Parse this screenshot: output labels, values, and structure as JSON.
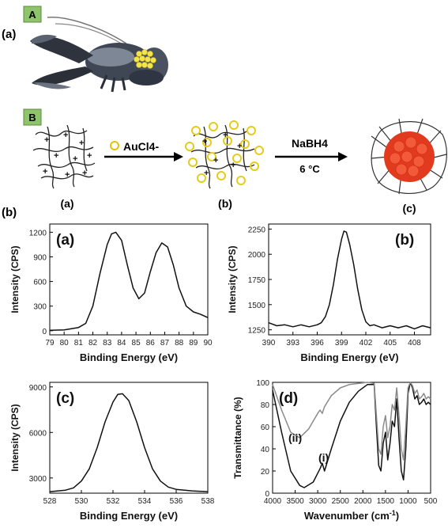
{
  "figure": {
    "part_a_label": "(a)",
    "part_b_label": "(b)",
    "box_a": "A",
    "box_b": "B",
    "scheme": {
      "reagent_1": "AuCl4-",
      "reagent_2": "NaBH4",
      "temperature": "6 °C",
      "stage_labels": [
        "(a)",
        "(b)",
        "(c)"
      ]
    }
  },
  "chart_data": [
    {
      "type": "line",
      "panel_label": "(a)",
      "xlabel": "Binding Energy (eV)",
      "ylabel": "Intensity (CPS)",
      "xlim": [
        79,
        90
      ],
      "ylim": [
        -50,
        1300
      ],
      "xticks": [
        79,
        80,
        81,
        82,
        83,
        84,
        85,
        86,
        87,
        88,
        89,
        90
      ],
      "yticks": [
        0,
        300,
        600,
        900,
        1200
      ],
      "series": [
        {
          "x": [
            79,
            80,
            81,
            81.5,
            82,
            82.5,
            83,
            83.3,
            83.6,
            84,
            84.4,
            84.8,
            85.2,
            85.6,
            86,
            86.4,
            86.8,
            87.2,
            87.6,
            88,
            88.5,
            89,
            89.5,
            90
          ],
          "y": [
            5,
            10,
            40,
            90,
            300,
            700,
            1050,
            1180,
            1200,
            1100,
            800,
            520,
            390,
            460,
            720,
            950,
            1070,
            1020,
            800,
            520,
            300,
            230,
            200,
            160
          ]
        }
      ]
    },
    {
      "type": "line",
      "panel_label": "(b)",
      "xlabel": "Binding Energy (eV)",
      "ylabel": "Intensity (CPS)",
      "xlim": [
        390,
        410
      ],
      "ylim": [
        1200,
        2300
      ],
      "xticks": [
        390,
        393,
        396,
        399,
        402,
        405,
        408
      ],
      "yticks": [
        1250,
        1500,
        1750,
        2000,
        2250
      ],
      "series": [
        {
          "x": [
            390,
            391,
            392,
            393,
            394,
            395,
            396,
            396.5,
            397,
            397.5,
            398,
            398.5,
            399,
            399.3,
            399.6,
            400,
            400.5,
            401,
            401.5,
            402,
            402.5,
            403,
            404,
            405,
            406,
            407,
            408,
            409,
            410
          ],
          "y": [
            1320,
            1290,
            1300,
            1280,
            1300,
            1280,
            1300,
            1320,
            1380,
            1500,
            1700,
            1950,
            2150,
            2230,
            2220,
            2100,
            1900,
            1650,
            1450,
            1330,
            1290,
            1300,
            1270,
            1290,
            1270,
            1290,
            1260,
            1290,
            1270
          ]
        }
      ]
    },
    {
      "type": "line",
      "panel_label": "(c)",
      "xlabel": "Binding Energy (eV)",
      "ylabel": "Intensity (CPS)",
      "xlim": [
        528,
        538
      ],
      "ylim": [
        2000,
        9300
      ],
      "xticks": [
        528,
        530,
        532,
        534,
        536,
        538
      ],
      "yticks": [
        3000,
        6000,
        9000
      ],
      "series": [
        {
          "x": [
            528,
            529,
            529.5,
            530,
            530.5,
            531,
            531.5,
            532,
            532.3,
            532.6,
            533,
            533.5,
            534,
            534.5,
            535,
            535.5,
            536,
            537,
            538
          ],
          "y": [
            2100,
            2200,
            2350,
            2800,
            3600,
            5000,
            6700,
            8000,
            8500,
            8550,
            8100,
            6700,
            5000,
            3600,
            2800,
            2400,
            2250,
            2150,
            2100
          ]
        }
      ]
    },
    {
      "type": "line",
      "panel_label": "(d)",
      "xlabel": "Wavenumber (cm-1)",
      "ylabel": "Transmittance (%)",
      "xlim": [
        4000,
        500
      ],
      "ylim": [
        0,
        100
      ],
      "xticks": [
        4000,
        3500,
        3000,
        2500,
        2000,
        1500,
        1000,
        500
      ],
      "yticks": [
        0,
        20,
        40,
        60,
        80,
        100
      ],
      "annotations": [
        "(i)",
        "(ii)"
      ],
      "series": [
        {
          "name": "(i)",
          "x": [
            4000,
            3800,
            3600,
            3400,
            3300,
            3100,
            2950,
            2900,
            2850,
            2700,
            2500,
            2300,
            2100,
            1900,
            1750,
            1700,
            1650,
            1600,
            1550,
            1500,
            1450,
            1400,
            1350,
            1300,
            1250,
            1200,
            1150,
            1100,
            1050,
            1000,
            950,
            900,
            850,
            800,
            750,
            700,
            650,
            600,
            550,
            500
          ],
          "y": [
            93,
            55,
            20,
            7,
            5,
            10,
            22,
            27,
            20,
            40,
            65,
            82,
            92,
            98,
            98,
            60,
            25,
            20,
            45,
            55,
            30,
            45,
            65,
            60,
            85,
            50,
            20,
            12,
            40,
            90,
            100,
            95,
            85,
            88,
            80,
            82,
            85,
            80,
            82,
            80
          ]
        },
        {
          "name": "(ii)",
          "x": [
            4000,
            3800,
            3600,
            3400,
            3200,
            3000,
            2950,
            2900,
            2850,
            2700,
            2500,
            2300,
            2100,
            1900,
            1750,
            1700,
            1650,
            1600,
            1550,
            1500,
            1450,
            1400,
            1350,
            1300,
            1250,
            1200,
            1150,
            1100,
            1050,
            1000,
            950,
            900,
            850,
            800,
            750,
            700,
            650,
            600,
            550,
            500
          ],
          "y": [
            98,
            75,
            55,
            50,
            58,
            72,
            75,
            72,
            78,
            88,
            95,
            98,
            99,
            100,
            99,
            70,
            40,
            35,
            60,
            70,
            50,
            60,
            80,
            75,
            95,
            70,
            40,
            30,
            60,
            95,
            100,
            97,
            90,
            93,
            85,
            87,
            90,
            85,
            87,
            85
          ]
        }
      ]
    }
  ]
}
